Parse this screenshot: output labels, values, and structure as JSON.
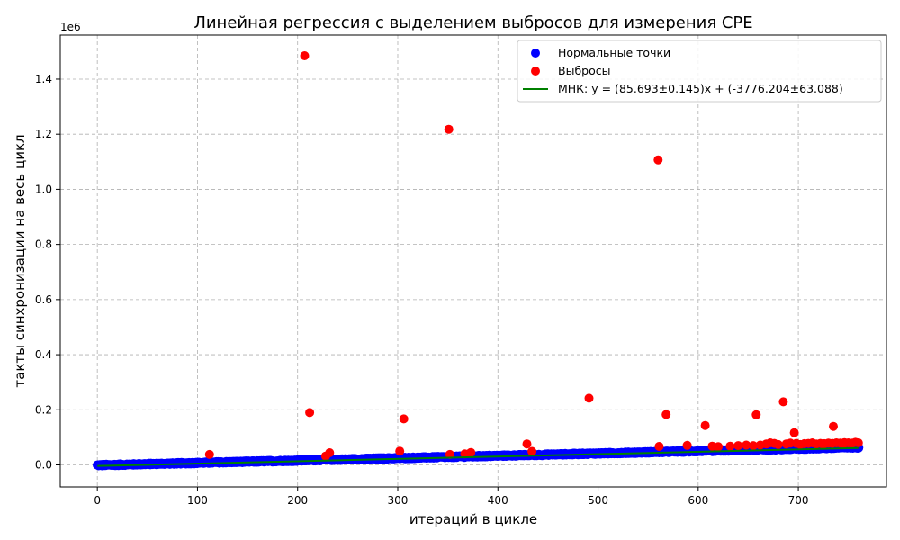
{
  "chart_data": {
    "type": "scatter",
    "title": "Линейная регрессия с выделением выбросов для измерения CPE",
    "xlabel": "итераций в цикле",
    "ylabel": "такты синхронизации на весь цикл",
    "y_scale_label": "1e6",
    "xlim": [
      -37,
      788
    ],
    "ylim": [
      -80000,
      1560000
    ],
    "x_ticks": [
      0,
      100,
      200,
      300,
      400,
      500,
      600,
      700
    ],
    "x_tick_labels": [
      "0",
      "100",
      "200",
      "300",
      "400",
      "500",
      "600",
      "700"
    ],
    "y_ticks": [
      0,
      200000,
      400000,
      600000,
      800000,
      1000000,
      1200000,
      1400000
    ],
    "y_tick_labels": [
      "0.0",
      "0.2",
      "0.4",
      "0.6",
      "0.8",
      "1.0",
      "1.2",
      "1.4"
    ],
    "grid": true,
    "legend_position": "top-right",
    "series": [
      {
        "name": "Нормальные точки",
        "color": "#0000ff",
        "marker": "circle",
        "x_range": [
          0,
          760
        ],
        "slope": 85.693,
        "intercept": -3776.204,
        "spread": 6000
      },
      {
        "name": "Выбросы",
        "color": "#ff0000",
        "marker": "circle",
        "points": [
          [
            207,
            1485000
          ],
          [
            351,
            1218000
          ],
          [
            560,
            1107000
          ],
          [
            491,
            242000
          ],
          [
            685,
            229000
          ],
          [
            212,
            190000
          ],
          [
            568,
            183000
          ],
          [
            658,
            182000
          ],
          [
            306,
            167000
          ],
          [
            607,
            143000
          ],
          [
            735,
            140000
          ],
          [
            696,
            117000
          ],
          [
            429,
            76000
          ],
          [
            589,
            71000
          ],
          [
            561,
            67000
          ],
          [
            302,
            50000
          ],
          [
            434,
            49000
          ],
          [
            373,
            45000
          ],
          [
            232,
            44000
          ],
          [
            112,
            38000
          ],
          [
            352,
            38000
          ],
          [
            367,
            40000
          ],
          [
            228,
            32000
          ],
          [
            614,
            68000
          ],
          [
            620,
            66000
          ],
          [
            632,
            68000
          ],
          [
            640,
            70000
          ],
          [
            648,
            72000
          ],
          [
            655,
            70000
          ],
          [
            662,
            72000
          ],
          [
            668,
            76000
          ],
          [
            672,
            80000
          ],
          [
            676,
            78000
          ],
          [
            680,
            74000
          ],
          [
            688,
            76000
          ],
          [
            692,
            79000
          ],
          [
            698,
            78000
          ],
          [
            702,
            74000
          ],
          [
            706,
            77000
          ],
          [
            710,
            78000
          ],
          [
            714,
            80000
          ],
          [
            718,
            76000
          ],
          [
            722,
            78000
          ],
          [
            726,
            77000
          ],
          [
            730,
            79000
          ],
          [
            734,
            78000
          ],
          [
            738,
            80000
          ],
          [
            742,
            79000
          ],
          [
            746,
            81000
          ],
          [
            750,
            80000
          ],
          [
            754,
            79000
          ],
          [
            757,
            82000
          ],
          [
            760,
            80000
          ],
          [
            745,
            76000
          ],
          [
            725,
            74000
          ]
        ]
      },
      {
        "name": "МНК: y = (85.693±0.145)x + (-3776.204±63.088)",
        "type": "line",
        "color": "#008000",
        "slope": 85.693,
        "intercept": -3776.204,
        "x_range": [
          0,
          760
        ]
      }
    ]
  }
}
